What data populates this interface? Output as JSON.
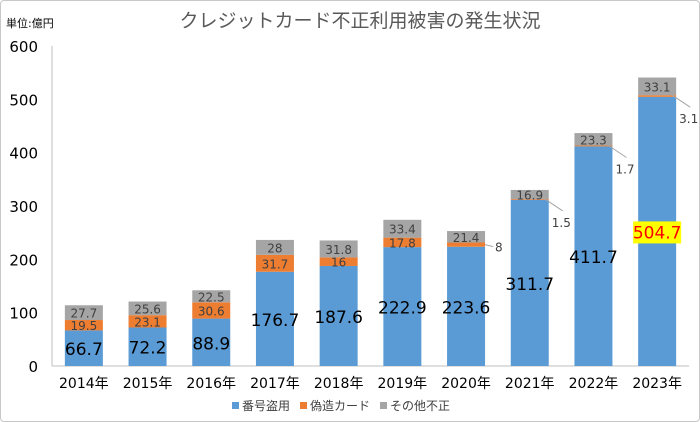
{
  "chart_data": {
    "type": "bar",
    "stacked": true,
    "title": "クレジットカード不正利用被害の発生状況",
    "unit_label": "単位:億円",
    "xlabel": "",
    "ylabel": "",
    "ylim": [
      0,
      600
    ],
    "yticks": [
      0,
      100,
      200,
      300,
      400,
      500,
      600
    ],
    "grid": false,
    "legend_position": "bottom",
    "categories": [
      "2014年",
      "2015年",
      "2016年",
      "2017年",
      "2018年",
      "2019年",
      "2020年",
      "2021年",
      "2022年",
      "2023年"
    ],
    "series": [
      {
        "name": "番号盗用",
        "color": "#5b9bd5",
        "values": [
          66.7,
          72.2,
          88.9,
          176.7,
          187.6,
          222.9,
          223.6,
          311.7,
          411.7,
          504.7
        ]
      },
      {
        "name": "偽造カード",
        "color": "#ed7d31",
        "values": [
          19.5,
          23.1,
          30.6,
          31.7,
          16,
          17.8,
          8,
          1.5,
          1.7,
          3.1
        ]
      },
      {
        "name": "その他不正",
        "color": "#a5a5a5",
        "values": [
          27.7,
          25.6,
          22.5,
          28,
          31.8,
          33.4,
          21.4,
          16.9,
          23.3,
          33.1
        ]
      }
    ],
    "highlight": {
      "category": "2023年",
      "series": "番号盗用",
      "text_color": "#ff0000",
      "background": "#ffff00"
    }
  }
}
